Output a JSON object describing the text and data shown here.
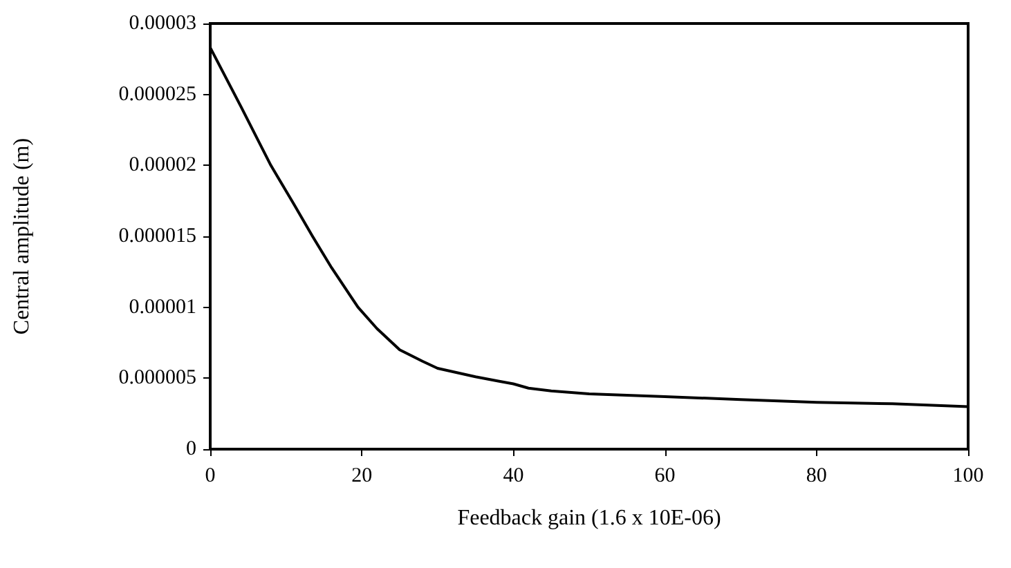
{
  "chart_data": {
    "type": "line",
    "xlabel": "Feedback gain (1.6 x 10E-06)",
    "ylabel": "Central amplitude (m)",
    "x": [
      0,
      4,
      8,
      11,
      13.5,
      16,
      19.5,
      22,
      25,
      28,
      30,
      35,
      38,
      40,
      42,
      45,
      50,
      55,
      60,
      70,
      80,
      90,
      100
    ],
    "series": [
      {
        "color": "#000000",
        "values": [
          2.83e-05,
          2.42e-05,
          2e-05,
          1.73e-05,
          1.5e-05,
          1.28e-05,
          1e-05,
          8.5e-06,
          7e-06,
          6.2e-06,
          5.7e-06,
          5.1e-06,
          4.8e-06,
          4.6e-06,
          4.3e-06,
          4.1e-06,
          3.9e-06,
          3.8e-06,
          3.7e-06,
          3.5e-06,
          3.3e-06,
          3.2e-06,
          3e-06
        ]
      }
    ],
    "xlim": [
      0,
      100
    ],
    "xticks": [
      0,
      20,
      40,
      60,
      80,
      100
    ],
    "ylim": [
      0,
      3e-05
    ],
    "yticks": [
      {
        "value": 0,
        "label": "0"
      },
      {
        "value": 5e-06,
        "label": "0.000005"
      },
      {
        "value": 1e-05,
        "label": "0.00001"
      },
      {
        "value": 1.5e-05,
        "label": "0.000015"
      },
      {
        "value": 2e-05,
        "label": "0.00002"
      },
      {
        "value": 2.5e-05,
        "label": "0.000025"
      },
      {
        "value": 3e-05,
        "label": "0.00003"
      }
    ],
    "grid": false,
    "marker": "none",
    "line_style": "solid"
  }
}
